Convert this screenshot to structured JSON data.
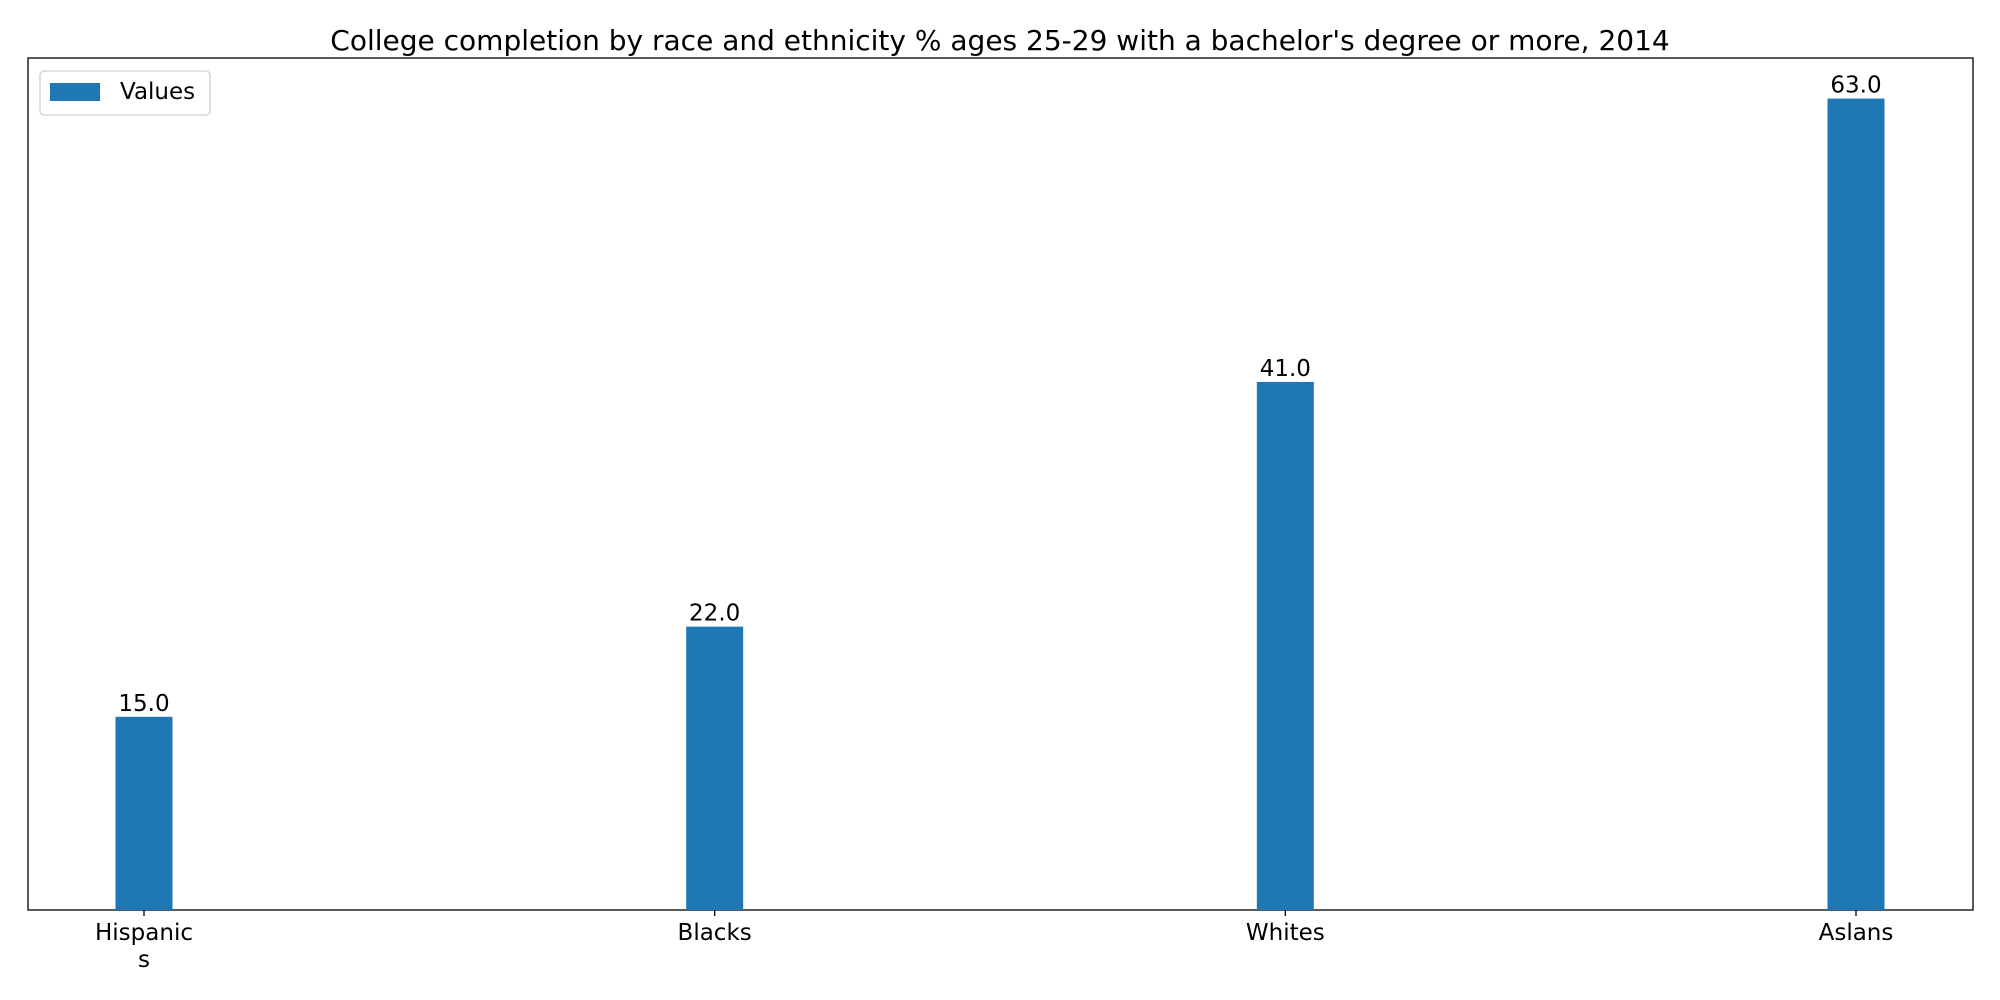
{
  "chart_data": {
    "type": "bar",
    "title": "College completion by race and ethnicity % ages 25-29 with a bachelor's degree or more, 2014",
    "categories": [
      "Hispanic\ns",
      "Blacks",
      "Whites",
      "Aslans"
    ],
    "series": [
      {
        "name": "Values",
        "values": [
          15.0,
          22.0,
          41.0,
          63.0
        ],
        "data_labels": [
          "15.0",
          "22.0",
          "41.0",
          "63.0"
        ],
        "color": "#1f77b4"
      }
    ],
    "xlabel": "",
    "ylabel": "",
    "ylim": [
      0,
      66.15
    ],
    "y_ticks_visible": false,
    "grid": false,
    "legend_position": "upper-left"
  }
}
